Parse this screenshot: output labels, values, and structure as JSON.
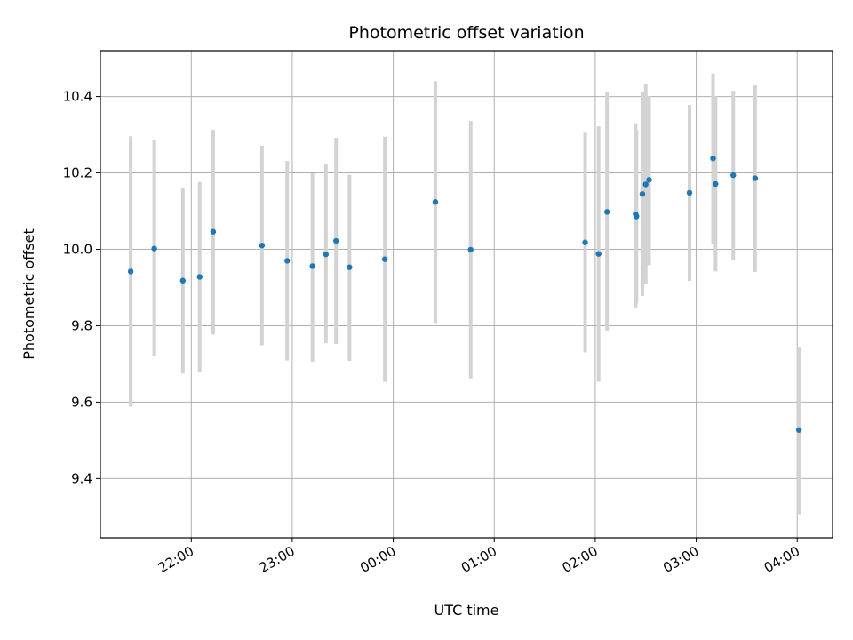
{
  "chart_data": {
    "type": "scatter",
    "title": "Photometric offset variation",
    "xlabel": "UTC time",
    "ylabel": "Photometric offset",
    "x_axis_type": "time",
    "xlim": [
      "2023-01-01T21:06:00",
      "2023-01-02T04:21:00"
    ],
    "ylim": [
      9.245,
      10.52
    ],
    "x_ticks": [
      {
        "t": "2023-01-01T22:00:00",
        "label": "22:00"
      },
      {
        "t": "2023-01-01T23:00:00",
        "label": "23:00"
      },
      {
        "t": "2023-01-02T00:00:00",
        "label": "00:00"
      },
      {
        "t": "2023-01-02T01:00:00",
        "label": "01:00"
      },
      {
        "t": "2023-01-02T02:00:00",
        "label": "02:00"
      },
      {
        "t": "2023-01-02T03:00:00",
        "label": "03:00"
      },
      {
        "t": "2023-01-02T04:00:00",
        "label": "04:00"
      }
    ],
    "y_ticks": [
      {
        "v": 9.4,
        "label": "9.4"
      },
      {
        "v": 9.6,
        "label": "9.6"
      },
      {
        "v": 9.8,
        "label": "9.8"
      },
      {
        "v": 10.0,
        "label": "10.0"
      },
      {
        "v": 10.2,
        "label": "10.2"
      },
      {
        "v": 10.4,
        "label": "10.4"
      }
    ],
    "grid": true,
    "point_color": "#1f77b4",
    "errorbar_color": "#d3d3d3",
    "points": [
      {
        "t": "2023-01-01T21:24:00",
        "y": 9.942,
        "ylow": 9.588,
        "yhigh": 10.296
      },
      {
        "t": "2023-01-01T21:38:00",
        "y": 10.002,
        "ylow": 9.72,
        "yhigh": 10.285
      },
      {
        "t": "2023-01-01T21:55:00",
        "y": 9.918,
        "ylow": 9.675,
        "yhigh": 10.16
      },
      {
        "t": "2023-01-01T22:05:00",
        "y": 9.928,
        "ylow": 9.68,
        "yhigh": 10.176
      },
      {
        "t": "2023-01-01T22:13:00",
        "y": 10.046,
        "ylow": 9.777,
        "yhigh": 10.313
      },
      {
        "t": "2023-01-01T22:42:00",
        "y": 10.01,
        "ylow": 9.749,
        "yhigh": 10.271
      },
      {
        "t": "2023-01-01T22:57:00",
        "y": 9.97,
        "ylow": 9.709,
        "yhigh": 10.231
      },
      {
        "t": "2023-01-01T23:12:00",
        "y": 9.956,
        "ylow": 9.706,
        "yhigh": 10.199
      },
      {
        "t": "2023-01-01T23:20:00",
        "y": 9.987,
        "ylow": 9.754,
        "yhigh": 10.222
      },
      {
        "t": "2023-01-01T23:26:00",
        "y": 10.022,
        "ylow": 9.752,
        "yhigh": 10.292
      },
      {
        "t": "2023-01-01T23:34:00",
        "y": 9.953,
        "ylow": 9.708,
        "yhigh": 10.195
      },
      {
        "t": "2023-01-01T23:55:00",
        "y": 9.974,
        "ylow": 9.653,
        "yhigh": 10.295
      },
      {
        "t": "2023-01-02T00:25:00",
        "y": 10.124,
        "ylow": 9.807,
        "yhigh": 10.44
      },
      {
        "t": "2023-01-02T00:46:00",
        "y": 9.999,
        "ylow": 9.662,
        "yhigh": 10.336
      },
      {
        "t": "2023-01-02T01:54:00",
        "y": 10.018,
        "ylow": 9.73,
        "yhigh": 10.305
      },
      {
        "t": "2023-01-02T02:02:00",
        "y": 9.988,
        "ylow": 9.653,
        "yhigh": 10.322
      },
      {
        "t": "2023-01-02T02:07:00",
        "y": 10.098,
        "ylow": 9.787,
        "yhigh": 10.411
      },
      {
        "t": "2023-01-02T02:24:00",
        "y": 10.092,
        "ylow": 9.848,
        "yhigh": 10.33
      },
      {
        "t": "2023-01-02T02:24:30",
        "y": 10.086,
        "ylow": 9.858,
        "yhigh": 10.312
      },
      {
        "t": "2023-01-02T02:28:00",
        "y": 10.145,
        "ylow": 9.878,
        "yhigh": 10.412
      },
      {
        "t": "2023-01-02T02:30:00",
        "y": 10.17,
        "ylow": 9.908,
        "yhigh": 10.432
      },
      {
        "t": "2023-01-02T02:32:00",
        "y": 10.182,
        "ylow": 9.958,
        "yhigh": 10.401
      },
      {
        "t": "2023-01-02T02:56:00",
        "y": 10.148,
        "ylow": 9.917,
        "yhigh": 10.378
      },
      {
        "t": "2023-01-02T03:10:00",
        "y": 10.238,
        "ylow": 10.013,
        "yhigh": 10.46
      },
      {
        "t": "2023-01-02T03:11:30",
        "y": 10.171,
        "ylow": 9.942,
        "yhigh": 10.4
      },
      {
        "t": "2023-01-02T03:22:00",
        "y": 10.194,
        "ylow": 9.972,
        "yhigh": 10.415
      },
      {
        "t": "2023-01-02T03:35:00",
        "y": 10.186,
        "ylow": 9.941,
        "yhigh": 10.429
      },
      {
        "t": "2023-01-02T04:01:00",
        "y": 9.527,
        "ylow": 9.307,
        "yhigh": 9.745
      }
    ]
  }
}
